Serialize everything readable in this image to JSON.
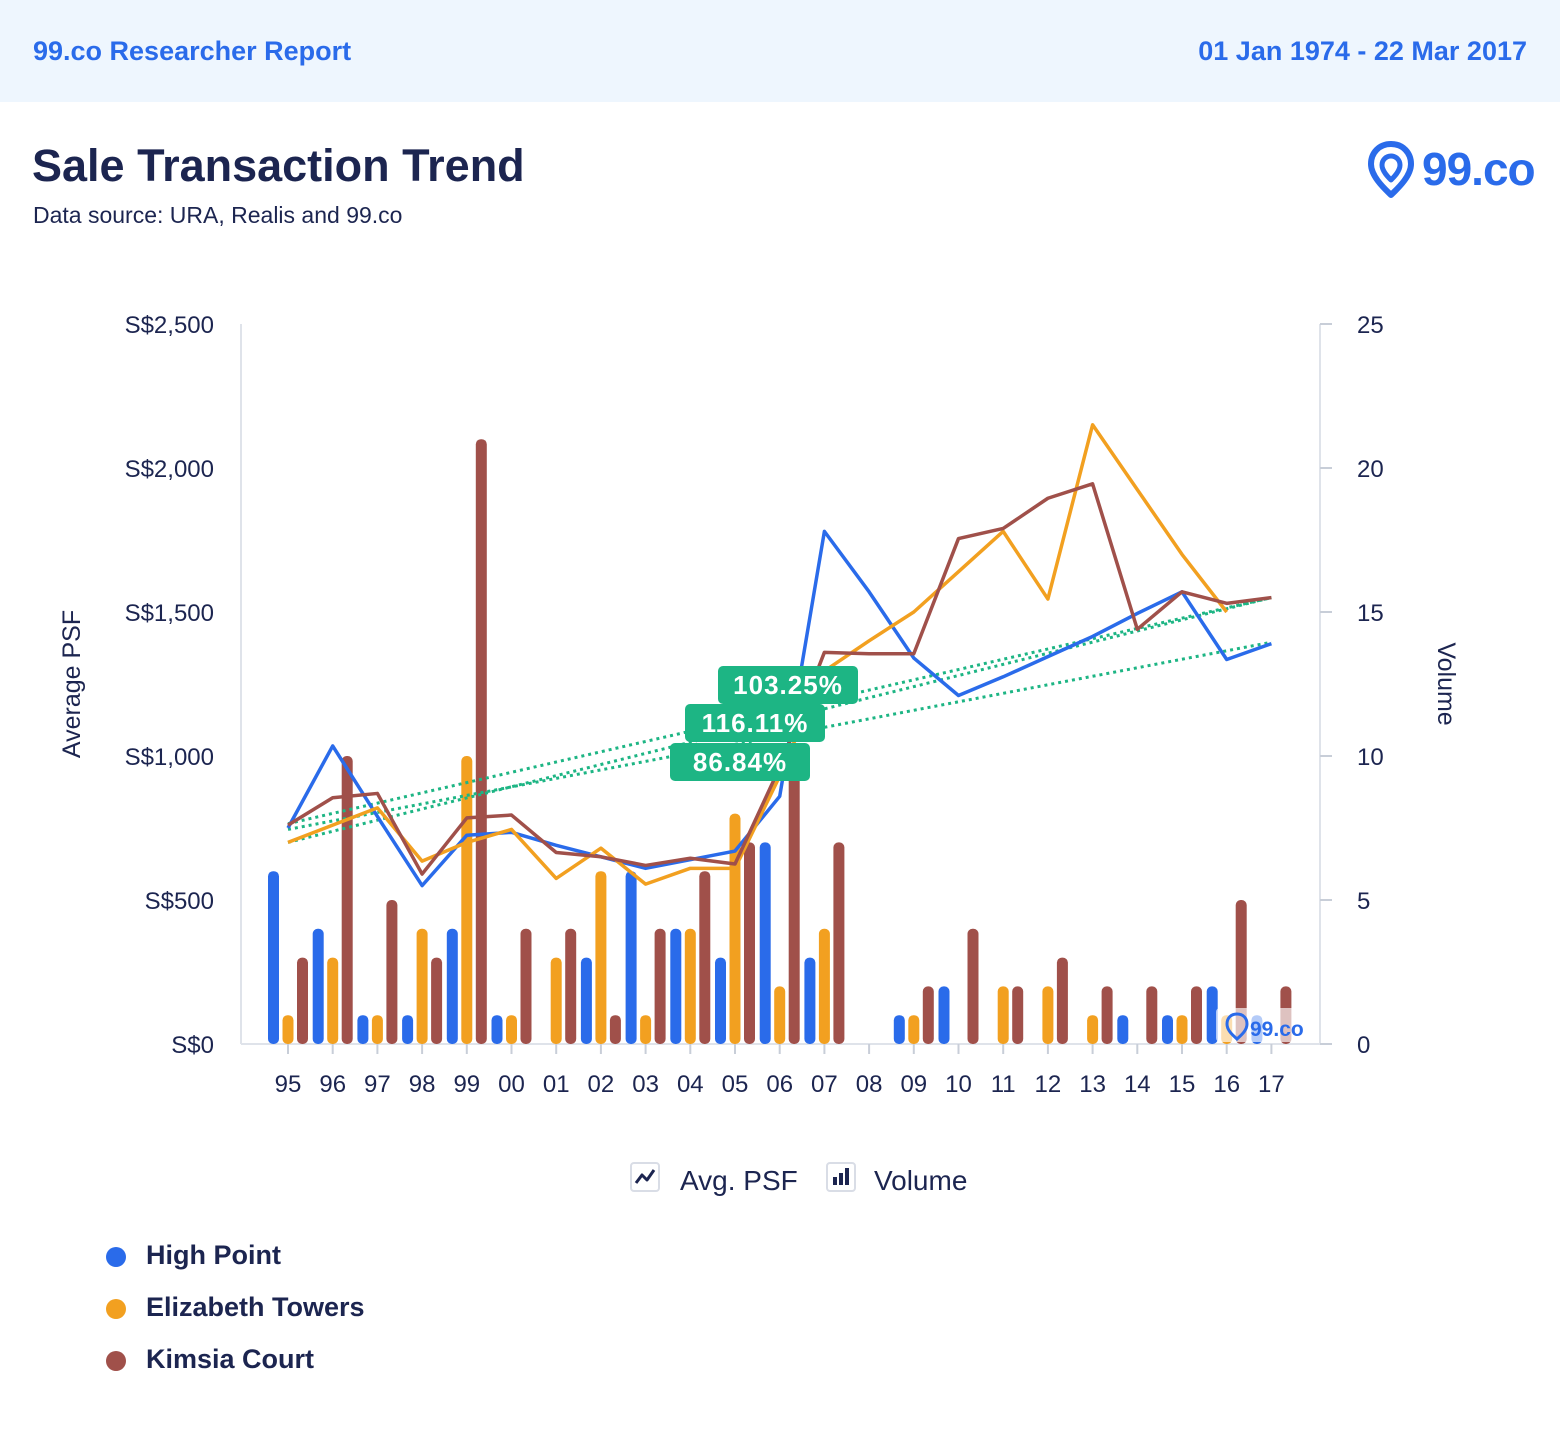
{
  "header": {
    "report_label": "99.co Researcher Report",
    "date_range": "01 Jan 1974 - 22 Mar 2017"
  },
  "title": "Sale Transaction Trend",
  "subtitle": "Data source: URA, Realis and 99.co",
  "logo": {
    "text": "99.co",
    "icon": "location-pin-icon",
    "watermark_text": "99.co"
  },
  "legend_types": {
    "avg_psf": "Avg. PSF",
    "volume": "Volume"
  },
  "colors": {
    "high_point": "#2a6bea",
    "elizabeth_towers": "#f2a020",
    "kimsia_court": "#a0504a",
    "trend": "#1db584",
    "header_bg": "#eef6fe",
    "text": "#1c2550"
  },
  "chart_data": {
    "type": "bar",
    "categories": [
      "95",
      "96",
      "97",
      "98",
      "99",
      "00",
      "01",
      "02",
      "03",
      "04",
      "05",
      "06",
      "07",
      "08",
      "09",
      "10",
      "11",
      "12",
      "13",
      "14",
      "15",
      "16",
      "17"
    ],
    "y_left": {
      "label": "Average PSF",
      "ticks": [
        "S$0",
        "S$500",
        "S$1,000",
        "S$1,500",
        "S$2,000",
        "S$2,500"
      ],
      "range": [
        0,
        2500
      ]
    },
    "y_right": {
      "label": "Volume",
      "ticks": [
        "0",
        "5",
        "10",
        "15",
        "20",
        "25"
      ],
      "range": [
        0,
        25
      ]
    },
    "volume_series": [
      {
        "name": "High Point",
        "values": [
          6,
          4,
          1,
          1,
          4,
          1,
          0,
          3,
          6,
          4,
          3,
          7,
          3,
          0,
          1,
          2,
          0,
          0,
          0,
          1,
          1,
          2,
          1
        ]
      },
      {
        "name": "Elizabeth Towers",
        "values": [
          1,
          3,
          1,
          4,
          10,
          1,
          3,
          6,
          1,
          4,
          8,
          2,
          4,
          0,
          1,
          0,
          2,
          2,
          1,
          0,
          1,
          1,
          0
        ]
      },
      {
        "name": "Kimsia Court",
        "values": [
          3,
          10,
          5,
          3,
          21,
          4,
          4,
          1,
          4,
          6,
          7,
          10,
          7,
          0,
          2,
          4,
          2,
          3,
          2,
          2,
          2,
          5,
          2
        ]
      }
    ],
    "psf_series": [
      {
        "name": "High Point",
        "x_index": [
          0,
          1,
          2,
          3,
          4,
          5,
          6,
          7,
          8,
          9,
          10,
          11,
          12,
          13,
          14,
          15,
          16,
          17,
          18,
          19,
          20,
          21,
          22
        ],
        "values": [
          750,
          1035,
          790,
          550,
          725,
          735,
          690,
          650,
          610,
          640,
          670,
          860,
          1780,
          1570,
          1340,
          1210,
          1275,
          1345,
          1415,
          1495,
          1570,
          1335,
          1390
        ]
      },
      {
        "name": "Elizabeth Towers",
        "x_index": [
          0,
          1,
          2,
          3,
          4,
          5,
          6,
          7,
          8,
          9,
          10,
          11,
          12,
          13,
          14,
          15,
          16,
          17,
          18,
          19,
          20,
          21
        ],
        "values": [
          700,
          760,
          820,
          635,
          700,
          745,
          575,
          680,
          555,
          610,
          610,
          930,
          1295,
          1400,
          1500,
          1640,
          1780,
          1545,
          2150,
          1925,
          1700,
          1500
        ]
      },
      {
        "name": "Kimsia Court",
        "x_index": [
          0,
          1,
          2,
          3,
          4,
          5,
          6,
          7,
          8,
          9,
          10,
          11,
          12,
          13,
          14,
          15,
          16,
          17,
          18,
          19,
          20,
          21,
          22
        ],
        "values": [
          760,
          855,
          870,
          590,
          785,
          795,
          665,
          650,
          620,
          645,
          625,
          960,
          1360,
          1355,
          1355,
          1755,
          1790,
          1895,
          1945,
          1440,
          1570,
          1530,
          1550
        ]
      }
    ],
    "trend_lines": [
      {
        "name": "High Point",
        "label": "86.84%",
        "start": 745,
        "end": 1395
      },
      {
        "name": "Elizabeth Towers",
        "label": "116.11%",
        "start": 700,
        "end": 1550
      },
      {
        "name": "Kimsia Court",
        "label": "103.25%",
        "start": 765,
        "end": 1550
      }
    ],
    "grid": false,
    "legend_position": "bottom-left"
  }
}
